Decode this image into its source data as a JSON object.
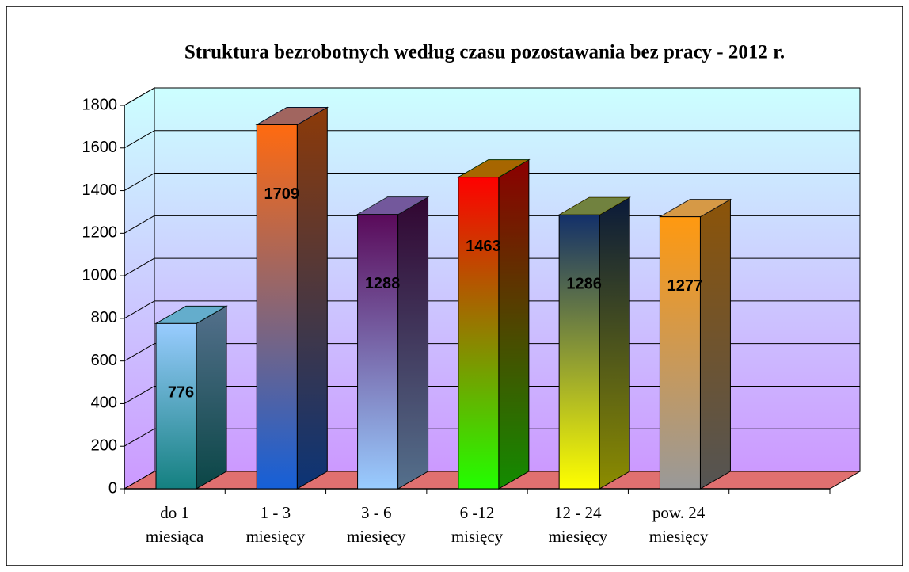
{
  "chart_data": {
    "type": "bar3d",
    "title": "Struktura bezrobotnych według czasu pozostawania bez pracy - 2012 r.",
    "categories": [
      "do 1\nmiesiąca",
      "1 - 3\nmiesięcy",
      "3 - 6\nmiesięcy",
      "6 -12\nmisięcy",
      "12 - 24\nmiesięcy",
      "pow. 24\nmiesięcy",
      null
    ],
    "values": [
      776,
      1709,
      1288,
      1463,
      1286,
      1277,
      null
    ],
    "bar_gradients": [
      [
        "#99ccff",
        "#148080"
      ],
      [
        "#ff6a10",
        "#1560d8"
      ],
      [
        "#5a0a5a",
        "#99ccff"
      ],
      [
        "#ff0000",
        "#22ff00"
      ],
      [
        "#13306a",
        "#ffff00"
      ],
      [
        "#ff9910",
        "#999999"
      ],
      null
    ],
    "ylim": [
      0,
      1800
    ],
    "yticks": [
      0,
      200,
      400,
      600,
      800,
      1000,
      1200,
      1400,
      1600,
      1800
    ],
    "grid": true,
    "wall_gradient": [
      "#ccffff",
      "#cc99ff"
    ],
    "floor_color": "#e07070"
  }
}
